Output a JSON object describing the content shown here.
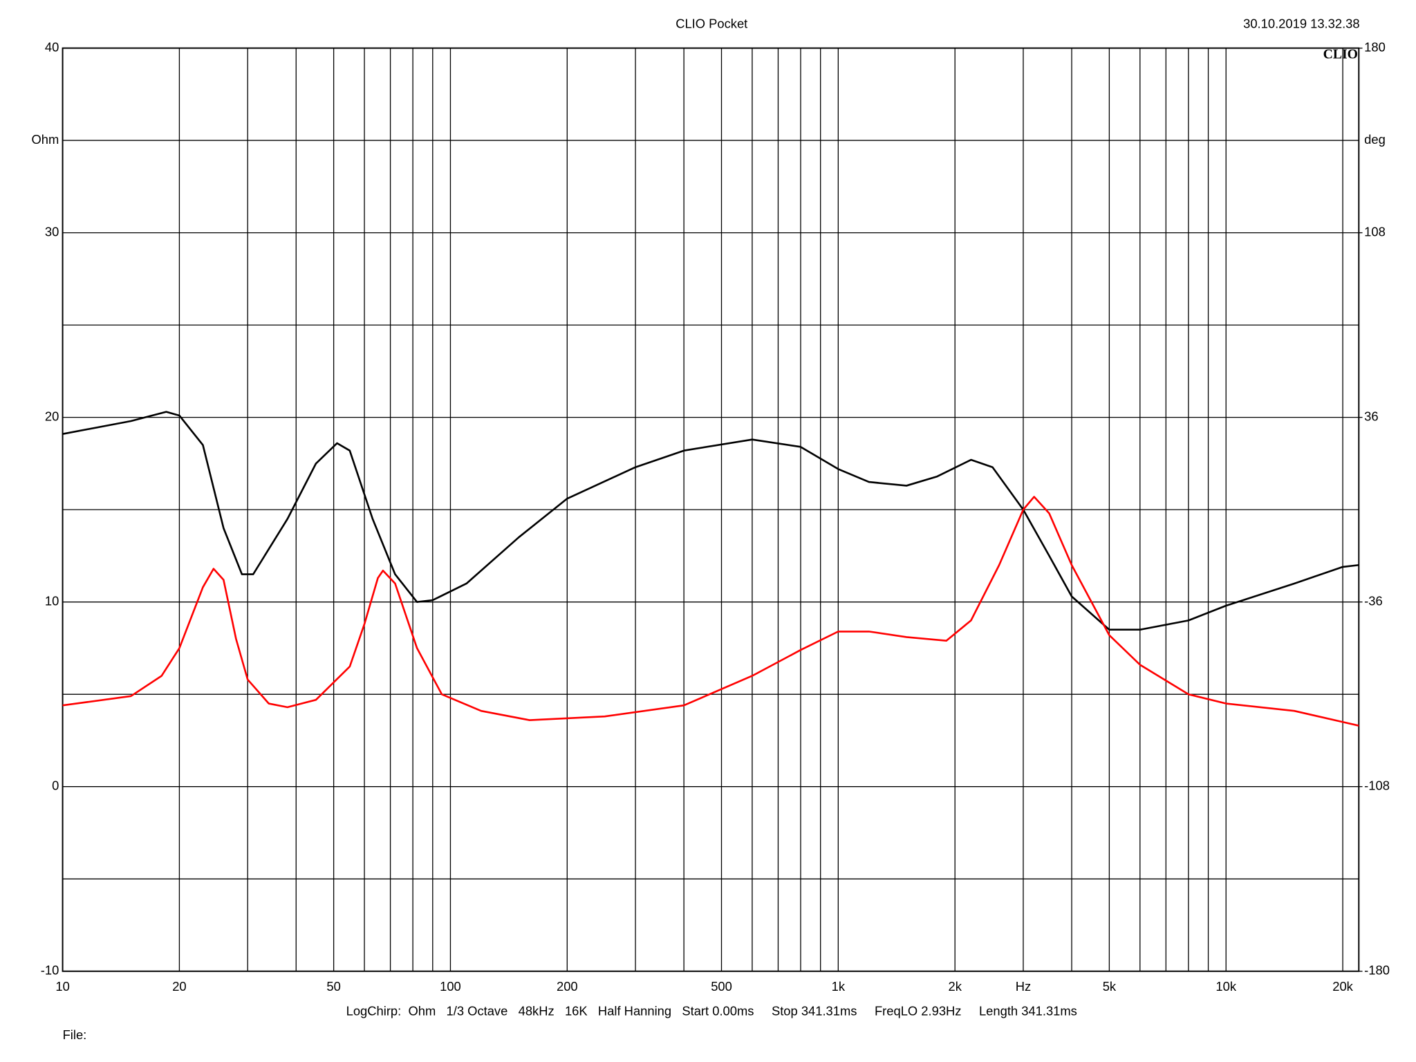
{
  "chart_data": {
    "type": "line",
    "title": "CLIO Pocket",
    "timestamp": "30.10.2019 13.32.38",
    "logo": "CLIO",
    "y_label": "Ohm",
    "y2_label": "deg",
    "footer": "LogChirp:  Ohm   1/3 Octave   48kHz   16K   Half Hanning   Start 0.00ms     Stop 341.31ms     FreqLO 2.93Hz     Length 341.31ms",
    "file_label": "File:",
    "x_log": true,
    "grid": true,
    "xlim": [
      10,
      22000
    ],
    "xticks": [
      10,
      20,
      50,
      100,
      200,
      500,
      {
        "value": 1000,
        "label": "1k"
      },
      {
        "value": 2000,
        "label": "2k"
      },
      {
        "value": 3000,
        "label": "Hz"
      },
      {
        "value": 5000,
        "label": "5k"
      },
      {
        "value": 10000,
        "label": "10k"
      },
      {
        "value": 20000,
        "label": "20k"
      }
    ],
    "x_minor_grid": [
      30,
      40,
      60,
      70,
      80,
      90,
      300,
      400,
      600,
      700,
      800,
      900,
      4000,
      6000,
      7000,
      8000,
      9000
    ],
    "ylim": [
      -10,
      40
    ],
    "yticks": [
      40,
      30,
      20,
      10,
      0,
      -10
    ],
    "y_minor_grid": [
      35,
      25,
      15,
      5,
      -5
    ],
    "y2lim": [
      -180,
      180
    ],
    "y2ticks": [
      180,
      108,
      36,
      -36,
      -108,
      -180
    ],
    "series": [
      {
        "color": "#000000",
        "x": [
          10,
          15,
          18.5,
          20,
          23,
          26,
          29,
          31,
          38,
          45,
          51,
          55,
          63,
          72,
          82,
          90,
          110,
          150,
          200,
          300,
          400,
          600,
          800,
          1000,
          1200,
          1500,
          1800,
          2200,
          2500,
          3000,
          3500,
          4000,
          5000,
          6000,
          8000,
          10000,
          15000,
          20000,
          22000
        ],
        "values": [
          19.1,
          19.8,
          20.3,
          20.1,
          18.5,
          14,
          11.5,
          11.5,
          14.5,
          17.5,
          18.6,
          18.2,
          14.5,
          11.5,
          10,
          10.1,
          11,
          13.5,
          15.6,
          17.3,
          18.2,
          18.8,
          18.4,
          17.2,
          16.5,
          16.3,
          16.8,
          17.7,
          17.3,
          15,
          12.5,
          10.3,
          8.5,
          8.5,
          9,
          9.8,
          11,
          11.9,
          12
        ]
      },
      {
        "color": "#ff0000",
        "x": [
          10,
          15,
          18,
          20,
          23,
          24.5,
          26,
          28,
          30,
          34,
          38,
          45,
          55,
          60,
          65,
          67,
          72,
          82,
          95,
          120,
          160,
          250,
          400,
          600,
          800,
          1000,
          1200,
          1500,
          1900,
          2200,
          2600,
          3000,
          3200,
          3500,
          4000,
          5000,
          6000,
          8000,
          10000,
          15000,
          20000,
          22000
        ],
        "values": [
          4.4,
          4.9,
          6,
          7.5,
          10.8,
          11.8,
          11.2,
          8,
          5.8,
          4.5,
          4.3,
          4.7,
          6.5,
          8.8,
          11.3,
          11.7,
          11,
          7.5,
          5,
          4.1,
          3.6,
          3.8,
          4.4,
          6,
          7.4,
          8.4,
          8.4,
          8.1,
          7.9,
          9,
          12,
          15,
          15.7,
          14.8,
          12,
          8.2,
          6.6,
          5,
          4.5,
          4.1,
          3.5,
          3.3
        ]
      }
    ]
  }
}
